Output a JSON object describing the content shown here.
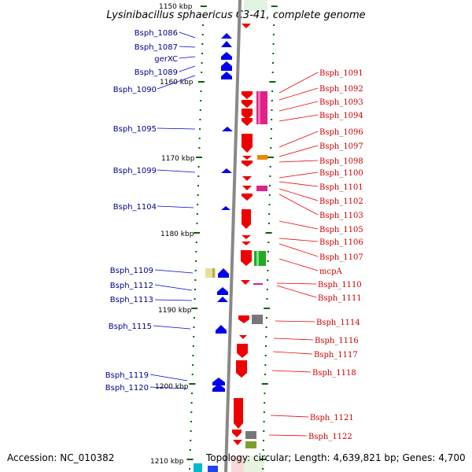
{
  "title": "Lysinibacillus sphaericus C3-41, complete genome",
  "accession": "Accession: NC_010382",
  "topology": "Topology: circular; Length: 4,639,821 bp; Genes: 4,700",
  "scale_labels": [
    "1150 kbp",
    "1160 kbp",
    "1170 kbp",
    "1180 kbp",
    "1190 kbp",
    "1200 kbp",
    "1210 kbp"
  ],
  "left_genes": [
    "Bsph_1086",
    "Bsph_1087",
    "gerXC",
    "Bsph_1089",
    "Bsph_1090",
    "Bsph_1095",
    "Bsph_1099",
    "Bsph_1104",
    "Bsph_1109",
    "Bsph_1112",
    "Bsph_1113",
    "Bsph_1115",
    "Bsph_1119",
    "Bsph_1120"
  ],
  "right_genes": [
    "Bsph_1091",
    "Bsph_1092",
    "Bsph_1093",
    "Bsph_1094",
    "Bsph_1096",
    "Bsph_1097",
    "Bsph_1098",
    "Bsph_1100",
    "Bsph_1101",
    "Bsph_1102",
    "Bsph_1103",
    "Bsph_1105",
    "Bsph_1106",
    "Bsph_1107",
    "mcpA",
    "Bsph_1110",
    "Bsph_1111",
    "Bsph_1114",
    "Bsph_1116",
    "Bsph_1117",
    "Bsph_1118",
    "Bsph_1121",
    "Bsph_1122"
  ],
  "colors": {
    "backbone": "#888888",
    "forward_gene": "#0000ee",
    "reverse_gene": "#ee0000",
    "label_left": "#00008b",
    "label_right": "#cc0000",
    "tick": "#006400",
    "feature_magenta": "#e0218a",
    "feature_green": "#22aa22",
    "feature_gray": "#777777",
    "feature_orange": "#ee8800",
    "feature_khaki": "#e8e09a",
    "feature_cyan": "#00b8cc"
  }
}
